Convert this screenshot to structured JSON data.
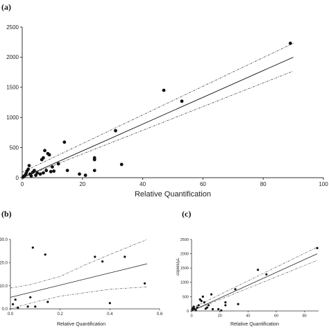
{
  "chart_data": [
    {
      "panel_label": "(a)",
      "type": "scatter",
      "xlabel": "Relative Quantification",
      "ylabel": "",
      "xlim": [
        0,
        100
      ],
      "ylim": [
        0,
        2500
      ],
      "xticks": [
        "0",
        "20",
        "40",
        "60",
        "80",
        "100"
      ],
      "yticks": [
        "0",
        "500",
        "1000",
        "1500",
        "2000",
        "2500"
      ],
      "points": [
        [
          0.3,
          10
        ],
        [
          0.6,
          25
        ],
        [
          1.0,
          40
        ],
        [
          1.3,
          70
        ],
        [
          1.6,
          110
        ],
        [
          2.0,
          140
        ],
        [
          2.3,
          200
        ],
        [
          2.6,
          60
        ],
        [
          3.0,
          30
        ],
        [
          3.5,
          90
        ],
        [
          4.0,
          120
        ],
        [
          4.5,
          40
        ],
        [
          5.0,
          80
        ],
        [
          6.0,
          60
        ],
        [
          6.5,
          300
        ],
        [
          7.0,
          330
        ],
        [
          7.5,
          450
        ],
        [
          7.0,
          80
        ],
        [
          8.0,
          120
        ],
        [
          8.5,
          400
        ],
        [
          9.0,
          380
        ],
        [
          9.5,
          100
        ],
        [
          10.0,
          180
        ],
        [
          10.5,
          110
        ],
        [
          12.0,
          230
        ],
        [
          14.0,
          590
        ],
        [
          15.0,
          120
        ],
        [
          19.0,
          60
        ],
        [
          21.0,
          40
        ],
        [
          24.0,
          120
        ],
        [
          24.0,
          300
        ],
        [
          24.0,
          330
        ],
        [
          31.0,
          780
        ],
        [
          33.0,
          220
        ],
        [
          47.0,
          1450
        ],
        [
          53.0,
          1270
        ],
        [
          89.0,
          2230
        ]
      ],
      "fit": [
        [
          0,
          0
        ],
        [
          90,
          2000
        ]
      ],
      "ci_upper": [
        [
          0,
          90
        ],
        [
          90,
          2230
        ]
      ],
      "ci_lower": [
        [
          0,
          -90
        ],
        [
          90,
          1770
        ]
      ],
      "grid": false
    },
    {
      "panel_label": "(b)",
      "type": "scatter",
      "xlabel": "Relative Quantification",
      "ylabel": "",
      "xlim": [
        0,
        0.6
      ],
      "ylim": [
        0,
        30
      ],
      "xticks": [
        "0.0",
        "0.2",
        "0.4",
        "0.6"
      ],
      "yticks": [
        "0.0",
        "10.0",
        "20.0",
        "30.0"
      ],
      "points": [
        [
          0.01,
          2.0
        ],
        [
          0.02,
          4.0
        ],
        [
          0.03,
          0.5
        ],
        [
          0.07,
          1.0
        ],
        [
          0.08,
          5.0
        ],
        [
          0.09,
          26.5
        ],
        [
          0.1,
          1.0
        ],
        [
          0.14,
          23.5
        ],
        [
          0.15,
          3.0
        ],
        [
          0.34,
          22.5
        ],
        [
          0.37,
          20.5
        ],
        [
          0.4,
          2.5
        ],
        [
          0.46,
          22.5
        ],
        [
          0.54,
          11.0
        ]
      ],
      "fit": [
        [
          0,
          5.0
        ],
        [
          0.55,
          19.5
        ]
      ],
      "ci_upper": [
        [
          0,
          9.0
        ],
        [
          0.08,
          10.5
        ],
        [
          0.2,
          14.0
        ],
        [
          0.3,
          19.0
        ],
        [
          0.4,
          23.5
        ],
        [
          0.55,
          30.0
        ]
      ],
      "ci_lower": [
        [
          0,
          -1.0
        ],
        [
          0.1,
          3.0
        ],
        [
          0.2,
          5.5
        ],
        [
          0.3,
          7.0
        ],
        [
          0.4,
          8.5
        ],
        [
          0.55,
          9.5
        ]
      ],
      "grid": false
    },
    {
      "panel_label": "(c)",
      "type": "scatter",
      "xlabel": "Relative Quantification",
      "ylabel": "copies/µL",
      "xlim": [
        0,
        90
      ],
      "ylim": [
        0,
        2500
      ],
      "xticks": [
        "0",
        "20",
        "40",
        "60",
        "80"
      ],
      "yticks": [
        "0",
        "500",
        "1000",
        "1500",
        "2000",
        "2500"
      ],
      "points": [
        [
          0.5,
          50
        ],
        [
          1.0,
          100
        ],
        [
          1.5,
          150
        ],
        [
          2.0,
          80
        ],
        [
          3.0,
          30
        ],
        [
          4.0,
          120
        ],
        [
          5.0,
          200
        ],
        [
          6.0,
          400
        ],
        [
          7.0,
          350
        ],
        [
          8.0,
          500
        ],
        [
          9.0,
          300
        ],
        [
          10.0,
          80
        ],
        [
          11.0,
          120
        ],
        [
          12.0,
          200
        ],
        [
          14.0,
          580
        ],
        [
          15.0,
          60
        ],
        [
          19.0,
          60
        ],
        [
          21.0,
          20
        ],
        [
          24.0,
          200
        ],
        [
          24.0,
          300
        ],
        [
          31.0,
          760
        ],
        [
          33.0,
          240
        ],
        [
          47.0,
          1440
        ],
        [
          53.0,
          1280
        ],
        [
          89.0,
          2200
        ]
      ],
      "fit": [
        [
          0,
          0
        ],
        [
          89,
          2000
        ]
      ],
      "ci_upper": [
        [
          0,
          90
        ],
        [
          89,
          2230
        ]
      ],
      "ci_lower": [
        [
          0,
          -90
        ],
        [
          89,
          1770
        ]
      ],
      "grid": false
    }
  ]
}
